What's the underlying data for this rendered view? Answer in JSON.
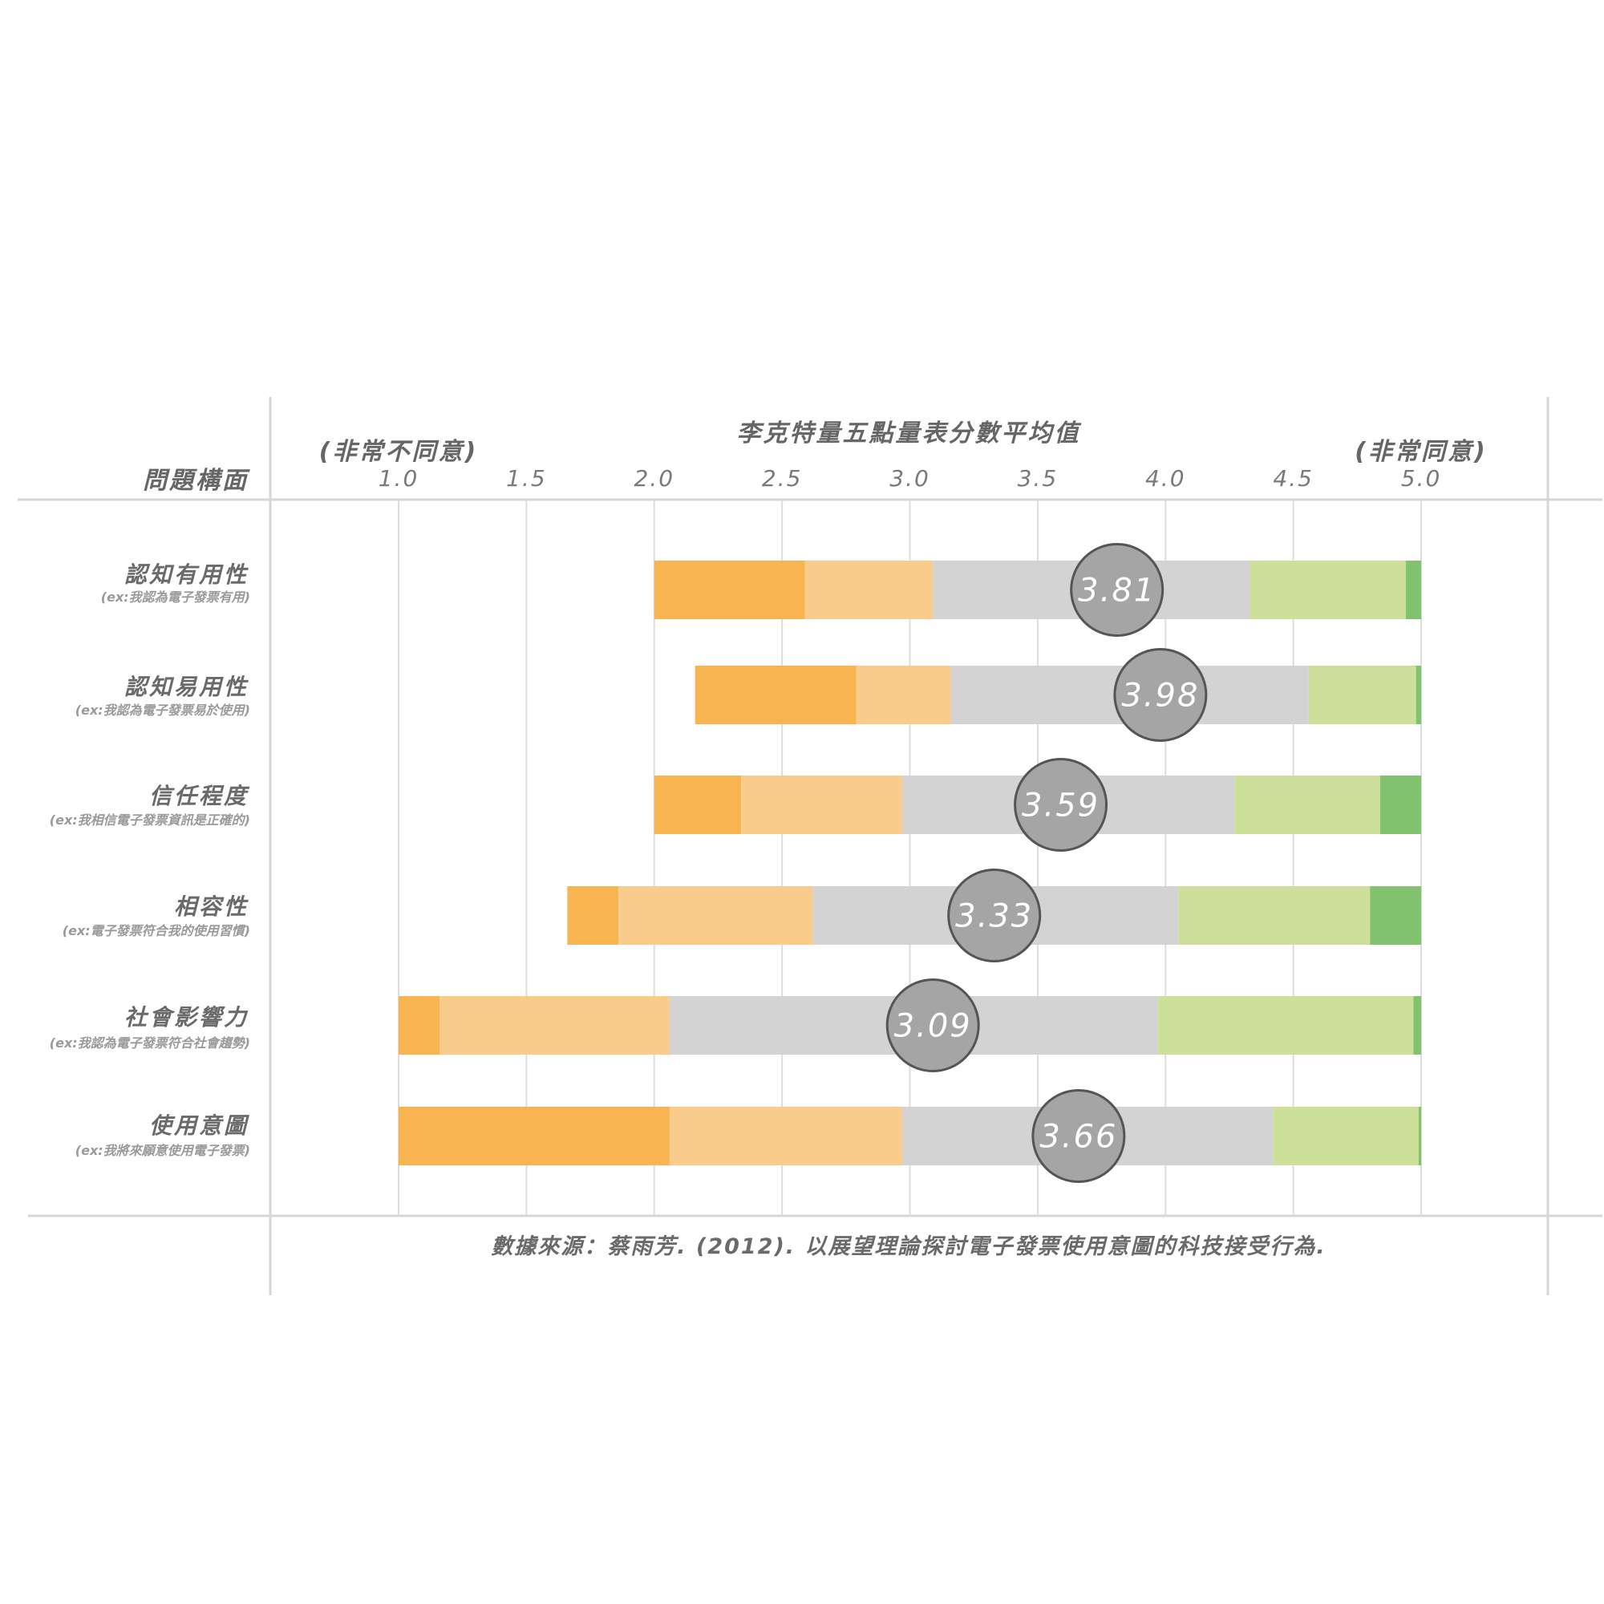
{
  "chart_data": {
    "type": "bar",
    "stacked": true,
    "orientation": "horizontal",
    "title": "李克特量五點量表分數平均值",
    "row_header": "問題構面",
    "scale_left_label": "(非常不同意)",
    "scale_right_label": "(非常同意)",
    "xlim": [
      1.0,
      5.0
    ],
    "ticks": [
      "1.0",
      "1.5",
      "2.0",
      "2.5",
      "3.0",
      "3.5",
      "4.0",
      "4.5",
      "5.0"
    ],
    "tick_values": [
      1.0,
      1.5,
      2.0,
      2.5,
      3.0,
      3.5,
      4.0,
      4.5,
      5.0
    ],
    "grid": true,
    "segment_colors": [
      "#f7b451",
      "#f9cc8c",
      "#d3d3d3",
      "#cce09a",
      "#80c26d"
    ],
    "mean_marker_color": "#a5a5a5",
    "rows": [
      {
        "label": "認知有用性",
        "sublabel": "(ex:我認為電子發票有用)",
        "boundaries": [
          2.0,
          2.59,
          3.09,
          4.33,
          4.94,
          5.0
        ],
        "mean": 3.81,
        "mean_label": "3.81"
      },
      {
        "label": "認知易用性",
        "sublabel": "(ex:我認為電子發票易於使用)",
        "boundaries": [
          2.16,
          2.79,
          3.16,
          4.56,
          4.98,
          5.0
        ],
        "mean": 3.98,
        "mean_label": "3.98"
      },
      {
        "label": "信任程度",
        "sublabel": "(ex:我相信電子發票資訊是正確的)",
        "boundaries": [
          2.0,
          2.34,
          2.97,
          4.27,
          4.84,
          5.0
        ],
        "mean": 3.59,
        "mean_label": "3.59"
      },
      {
        "label": "相容性",
        "sublabel": "(ex:電子發票符合我的使用習慣)",
        "boundaries": [
          1.66,
          1.86,
          2.62,
          4.05,
          4.8,
          5.0
        ],
        "mean": 3.33,
        "mean_label": "3.33"
      },
      {
        "label": "社會影響力",
        "sublabel": "(ex:我認為電子發票符合社會趨勢)",
        "boundaries": [
          1.0,
          1.16,
          2.06,
          3.97,
          4.97,
          5.0
        ],
        "mean": 3.09,
        "mean_label": "3.09"
      },
      {
        "label": "使用意圖",
        "sublabel": "(ex:我將來願意使用電子發票)",
        "boundaries": [
          1.0,
          2.06,
          2.97,
          4.42,
          4.99,
          5.0
        ],
        "mean": 3.66,
        "mean_label": "3.66"
      }
    ],
    "source": "數據來源：蔡雨芳. (2012). 以展望理論探討電子發票使用意圖的科技接受行為."
  }
}
